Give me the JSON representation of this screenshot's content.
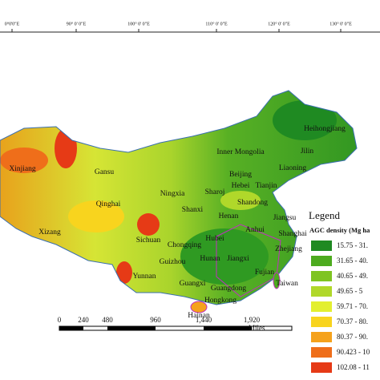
{
  "map": {
    "longitude_labels": [
      "0°0'0\"E",
      "90° 0' 0\"E",
      "100° 0' 0\"E",
      "110° 0' 0\"E",
      "120° 0' 0\"E",
      "130° 0' 0\"E"
    ],
    "regions": [
      "Heihongjiang",
      "Inner Mongolia",
      "Jilin",
      "Liaoning",
      "Xinjiang",
      "Gansu",
      "Beijing",
      "Hebei",
      "Tianjin",
      "Ningxia",
      "Sharoj",
      "Shandong",
      "Qinghai",
      "Shanxi",
      "Henan",
      "Jiangsu",
      "Anhui",
      "Shanghai",
      "Xizang",
      "Sichuan",
      "Hubei",
      "Chongqing",
      "Zhejiang",
      "Guizhou",
      "Hunan",
      "Jiangxi",
      "Fujian",
      "Yunnan",
      "Guangxi",
      "Guangdong",
      "Taiwan",
      "Hongkong",
      "Hainan"
    ],
    "legend": {
      "title": "Legend",
      "subtitle": "AGC density (Mg ha",
      "items": [
        {
          "label": "15.75 - 31.",
          "color": "#1f8a22"
        },
        {
          "label": "31.65 - 40.",
          "color": "#4dab1f"
        },
        {
          "label": "40.65 - 49.",
          "color": "#7fc422"
        },
        {
          "label": "49.65 - 5",
          "color": "#b0d82a"
        },
        {
          "label": "59.71 - 70.",
          "color": "#e3ef30"
        },
        {
          "label": "70.37 - 80.",
          "color": "#f8d41e"
        },
        {
          "label": "80.37 - 90.",
          "color": "#f5a21c"
        },
        {
          "label": "90.423 - 10",
          "color": "#ef6e1a"
        },
        {
          "label": "102.08 - 11",
          "color": "#e63a16"
        }
      ]
    },
    "scale": {
      "labels": [
        "0",
        "240",
        "480",
        "960",
        "1,440",
        "1,920"
      ],
      "unit": "Miles"
    }
  }
}
